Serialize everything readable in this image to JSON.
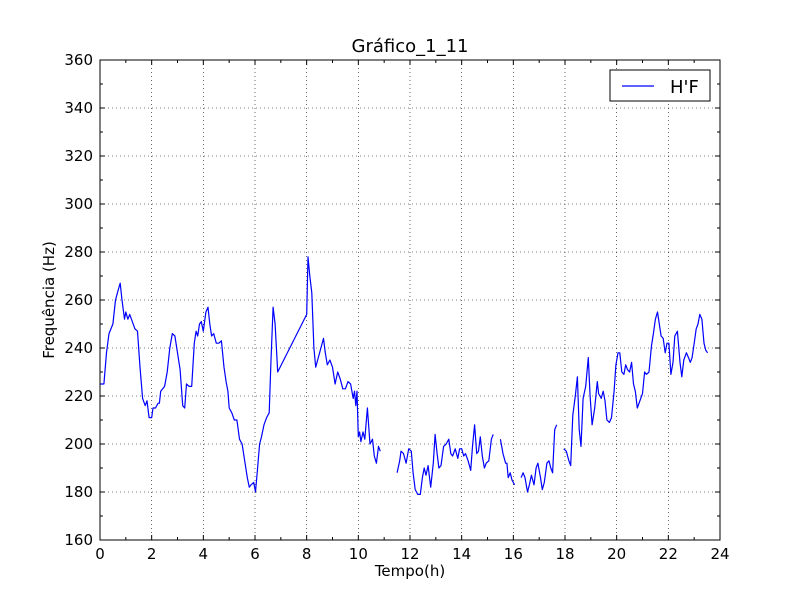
{
  "chart_data": {
    "type": "line",
    "title": "Gráfico_1_11",
    "xlabel": "Tempo(h)",
    "ylabel": "Frequência (Hz)",
    "xlim": [
      0,
      24
    ],
    "ylim": [
      160,
      360
    ],
    "xticks": [
      0,
      2,
      4,
      6,
      8,
      10,
      12,
      14,
      16,
      18,
      20,
      22,
      24
    ],
    "yticks": [
      160,
      180,
      200,
      220,
      240,
      260,
      280,
      300,
      320,
      340,
      360
    ],
    "grid": true,
    "legend_position": "top-right",
    "series": [
      {
        "name": "H'F",
        "color": "#0000ff",
        "segments": [
          [
            [
              0.0,
              225
            ],
            [
              0.15,
              225
            ],
            [
              0.25,
              238
            ],
            [
              0.35,
              246
            ],
            [
              0.5,
              250
            ],
            [
              0.6,
              260
            ],
            [
              0.7,
              264
            ],
            [
              0.78,
              267
            ],
            [
              0.85,
              260
            ],
            [
              0.95,
              252
            ],
            [
              1.0,
              255
            ],
            [
              1.08,
              252
            ],
            [
              1.15,
              254
            ],
            [
              1.25,
              251
            ],
            [
              1.35,
              248
            ],
            [
              1.45,
              247
            ],
            [
              1.55,
              232
            ],
            [
              1.65,
              219
            ],
            [
              1.75,
              216
            ],
            [
              1.82,
              218
            ],
            [
              1.9,
              211
            ],
            [
              2.0,
              211
            ],
            [
              2.05,
              215
            ],
            [
              2.15,
              215
            ],
            [
              2.25,
              217
            ],
            [
              2.3,
              217
            ],
            [
              2.35,
              222
            ],
            [
              2.5,
              224
            ],
            [
              2.6,
              230
            ],
            [
              2.7,
              240
            ],
            [
              2.8,
              246
            ],
            [
              2.9,
              245
            ],
            [
              3.0,
              238
            ],
            [
              3.1,
              231
            ],
            [
              3.2,
              216
            ],
            [
              3.28,
              215
            ],
            [
              3.35,
              225
            ],
            [
              3.45,
              224
            ],
            [
              3.55,
              224
            ],
            [
              3.65,
              242
            ],
            [
              3.72,
              247
            ],
            [
              3.78,
              245
            ],
            [
              3.85,
              250
            ],
            [
              3.92,
              251
            ],
            [
              4.0,
              247
            ],
            [
              4.1,
              255
            ],
            [
              4.18,
              257
            ],
            [
              4.25,
              250
            ],
            [
              4.32,
              245
            ],
            [
              4.4,
              246
            ],
            [
              4.5,
              242
            ],
            [
              4.6,
              242
            ],
            [
              4.7,
              243
            ],
            [
              4.8,
              232
            ],
            [
              4.88,
              226
            ],
            [
              4.95,
              222
            ],
            [
              5.0,
              215
            ],
            [
              5.1,
              213
            ],
            [
              5.2,
              210
            ],
            [
              5.3,
              210
            ],
            [
              5.4,
              202
            ],
            [
              5.5,
              200
            ],
            [
              5.6,
              193
            ],
            [
              5.7,
              186
            ],
            [
              5.78,
              182
            ],
            [
              5.85,
              183
            ],
            [
              5.95,
              184
            ],
            [
              6.02,
              180
            ],
            [
              6.1,
              190
            ],
            [
              6.18,
              200
            ],
            [
              6.25,
              203
            ],
            [
              6.35,
              208
            ],
            [
              6.45,
              211
            ],
            [
              6.55,
              213
            ],
            [
              6.62,
              235
            ],
            [
              6.7,
              257
            ],
            [
              6.78,
              250
            ],
            [
              6.88,
              230
            ],
            [
              8.0,
              254
            ],
            [
              8.05,
              278
            ],
            [
              8.12,
              270
            ],
            [
              8.2,
              263
            ],
            [
              8.28,
              240
            ],
            [
              8.35,
              232
            ],
            [
              8.45,
              236
            ],
            [
              8.55,
              240
            ],
            [
              8.65,
              244
            ],
            [
              8.72,
              238
            ],
            [
              8.8,
              233
            ],
            [
              8.9,
              235
            ],
            [
              9.0,
              232
            ],
            [
              9.1,
              225
            ],
            [
              9.2,
              230
            ],
            [
              9.3,
              227
            ],
            [
              9.4,
              223
            ],
            [
              9.5,
              223
            ],
            [
              9.6,
              226
            ],
            [
              9.7,
              225
            ],
            [
              9.8,
              219
            ],
            [
              9.85,
              222
            ],
            [
              9.9,
              216
            ],
            [
              9.95,
              222
            ],
            [
              10.0,
              203
            ],
            [
              10.05,
              205
            ],
            [
              10.1,
              201
            ],
            [
              10.18,
              205
            ],
            [
              10.25,
              202
            ],
            [
              10.35,
              215
            ],
            [
              10.45,
              200
            ],
            [
              10.55,
              202
            ],
            [
              10.62,
              195
            ],
            [
              10.7,
              192
            ],
            [
              10.78,
              199
            ],
            [
              10.85,
              197
            ]
          ],
          [
            [
              11.5,
              188
            ],
            [
              11.6,
              193
            ],
            [
              11.65,
              197
            ],
            [
              11.75,
              196
            ],
            [
              11.85,
              192
            ],
            [
              11.95,
              198
            ],
            [
              12.05,
              197
            ],
            [
              12.12,
              188
            ],
            [
              12.2,
              181
            ],
            [
              12.3,
              179
            ],
            [
              12.4,
              179
            ],
            [
              12.48,
              186
            ],
            [
              12.55,
              190
            ],
            [
              12.62,
              187
            ],
            [
              12.7,
              191
            ],
            [
              12.8,
              182
            ],
            [
              12.9,
              192
            ],
            [
              12.97,
              204
            ],
            [
              13.05,
              196
            ],
            [
              13.12,
              190
            ],
            [
              13.2,
              191
            ],
            [
              13.3,
              199
            ],
            [
              13.4,
              200
            ],
            [
              13.5,
              202
            ],
            [
              13.58,
              196
            ],
            [
              13.65,
              195
            ],
            [
              13.75,
              198
            ],
            [
              13.85,
              194
            ],
            [
              13.92,
              198
            ],
            [
              14.0,
              198
            ],
            [
              14.08,
              195
            ],
            [
              14.15,
              196
            ],
            [
              14.25,
              193
            ],
            [
              14.35,
              189
            ],
            [
              14.42,
              199
            ],
            [
              14.5,
              208
            ],
            [
              14.58,
              196
            ],
            [
              14.65,
              197
            ],
            [
              14.72,
              203
            ],
            [
              14.8,
              195
            ],
            [
              14.88,
              190
            ],
            [
              14.95,
              192
            ],
            [
              15.05,
              193
            ],
            [
              15.15,
              202
            ],
            [
              15.22,
              204
            ]
          ],
          [
            [
              15.5,
              202
            ],
            [
              15.6,
              196
            ],
            [
              15.7,
              192
            ],
            [
              15.75,
              192
            ],
            [
              15.8,
              186
            ],
            [
              15.88,
              188
            ],
            [
              15.95,
              185
            ],
            [
              16.05,
              183
            ]
          ],
          [
            [
              16.3,
              186
            ],
            [
              16.38,
              188
            ],
            [
              16.45,
              186
            ],
            [
              16.55,
              180
            ],
            [
              16.62,
              183
            ],
            [
              16.7,
              187
            ],
            [
              16.8,
              183
            ],
            [
              16.88,
              190
            ],
            [
              16.95,
              192
            ],
            [
              17.05,
              186
            ],
            [
              17.12,
              181
            ],
            [
              17.2,
              184
            ],
            [
              17.3,
              192
            ],
            [
              17.38,
              193
            ],
            [
              17.45,
              190
            ],
            [
              17.52,
              188
            ],
            [
              17.6,
              206
            ],
            [
              17.68,
              208
            ]
          ],
          [
            [
              17.95,
              198
            ],
            [
              18.05,
              197
            ],
            [
              18.15,
              193
            ],
            [
              18.22,
              191
            ],
            [
              18.3,
              212
            ],
            [
              18.4,
              220
            ],
            [
              18.48,
              228
            ],
            [
              18.55,
              206
            ],
            [
              18.62,
              199
            ],
            [
              18.7,
              219
            ],
            [
              18.8,
              224
            ],
            [
              18.9,
              236
            ],
            [
              18.97,
              220
            ],
            [
              19.05,
              208
            ],
            [
              19.15,
              215
            ],
            [
              19.25,
              226
            ],
            [
              19.3,
              221
            ],
            [
              19.4,
              219
            ],
            [
              19.48,
              222
            ],
            [
              19.55,
              218
            ],
            [
              19.62,
              210
            ],
            [
              19.72,
              209
            ],
            [
              19.8,
              211
            ],
            [
              19.9,
              222
            ],
            [
              19.97,
              233
            ],
            [
              20.05,
              238
            ],
            [
              20.12,
              238
            ],
            [
              20.2,
              230
            ],
            [
              20.28,
              229
            ],
            [
              20.35,
              233
            ],
            [
              20.42,
              231
            ],
            [
              20.5,
              230
            ],
            [
              20.58,
              234
            ],
            [
              20.65,
              225
            ],
            [
              20.72,
              222
            ],
            [
              20.8,
              215
            ],
            [
              20.9,
              218
            ],
            [
              21.0,
              221
            ],
            [
              21.08,
              230
            ],
            [
              21.15,
              229
            ],
            [
              21.25,
              230
            ],
            [
              21.35,
              241
            ],
            [
              21.42,
              246
            ],
            [
              21.5,
              252
            ],
            [
              21.58,
              255
            ],
            [
              21.65,
              250
            ],
            [
              21.72,
              245
            ],
            [
              21.8,
              244
            ],
            [
              21.88,
              238
            ],
            [
              21.95,
              242
            ],
            [
              22.02,
              242
            ],
            [
              22.1,
              229
            ],
            [
              22.18,
              234
            ],
            [
              22.25,
              245
            ],
            [
              22.35,
              247
            ],
            [
              22.45,
              234
            ],
            [
              22.52,
              228
            ],
            [
              22.6,
              235
            ],
            [
              22.7,
              238
            ],
            [
              22.78,
              236
            ],
            [
              22.85,
              234
            ],
            [
              22.92,
              236
            ],
            [
              23.0,
              242
            ],
            [
              23.08,
              248
            ],
            [
              23.15,
              250
            ],
            [
              23.22,
              254
            ],
            [
              23.3,
              252
            ],
            [
              23.38,
              242
            ],
            [
              23.45,
              239
            ],
            [
              23.52,
              238
            ]
          ]
        ]
      }
    ]
  }
}
